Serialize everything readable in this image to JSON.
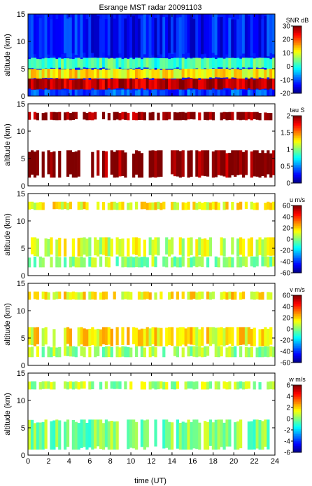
{
  "figure": {
    "title": "Esrange MST radar 20091103",
    "xlabel": "time (UT)",
    "ylabel": "altitude (km)"
  },
  "chart_data": {
    "type": "heatmap",
    "title": "Esrange MST radar 20091103",
    "xlabel": "time (UT)",
    "x_ticks": [
      0,
      2,
      4,
      6,
      8,
      10,
      12,
      14,
      16,
      18,
      20,
      22,
      24
    ],
    "xlim": [
      0,
      24
    ],
    "panels": [
      {
        "id": "snr",
        "ylabel": "altitude (km)",
        "ylim": [
          0,
          15
        ],
        "y_ticks": [
          0,
          5,
          10,
          15
        ],
        "colorbar_label": "SNR dB",
        "clim": [
          -20,
          30
        ],
        "colorbar_ticks": [
          -20,
          -10,
          0,
          10,
          20,
          30
        ],
        "colormap": "jet",
        "description_bands": [
          {
            "alt_from": 0,
            "alt_to": 1.2,
            "value": -10
          },
          {
            "alt_from": 1.2,
            "alt_to": 3.2,
            "value": 27
          },
          {
            "alt_from": 3.2,
            "alt_to": 5.0,
            "value": 12
          },
          {
            "alt_from": 5.0,
            "alt_to": 7.0,
            "value": 2
          },
          {
            "alt_from": 7.0,
            "alt_to": 15,
            "value": -13
          }
        ]
      },
      {
        "id": "tau",
        "ylabel": "altitude (km)",
        "ylim": [
          0,
          15
        ],
        "y_ticks": [
          0,
          5,
          10,
          15
        ],
        "colorbar_label": "tau S",
        "clim": [
          0,
          2
        ],
        "colorbar_ticks": [
          0,
          0.5,
          1,
          1.5,
          2
        ],
        "colormap": "jet",
        "description_bands": [
          {
            "alt_from": 1.5,
            "alt_to": 6.5,
            "value": 2.0
          },
          {
            "alt_from": 12.0,
            "alt_to": 13.5,
            "value": 2.0
          }
        ]
      },
      {
        "id": "u",
        "ylabel": "altitude (km)",
        "ylim": [
          0,
          15
        ],
        "y_ticks": [
          0,
          5,
          10,
          15
        ],
        "colorbar_label": "u m/s",
        "clim": [
          -60,
          60
        ],
        "colorbar_ticks": [
          -60,
          -40,
          -20,
          0,
          20,
          40,
          60
        ],
        "colormap": "jet",
        "description_bands": [
          {
            "alt_from": 1.5,
            "alt_to": 3.5,
            "value": 2
          },
          {
            "alt_from": 3.5,
            "alt_to": 7.0,
            "value": 10
          },
          {
            "alt_from": 12.0,
            "alt_to": 13.5,
            "value": 14
          }
        ]
      },
      {
        "id": "v",
        "ylabel": "altitude (km)",
        "ylim": [
          0,
          15
        ],
        "y_ticks": [
          0,
          5,
          10,
          15
        ],
        "colorbar_label": "v m/s",
        "clim": [
          -60,
          60
        ],
        "colorbar_ticks": [
          -60,
          -40,
          -20,
          0,
          20,
          40,
          60
        ],
        "colormap": "jet",
        "description_bands": [
          {
            "alt_from": 1.5,
            "alt_to": 3.5,
            "value": 4
          },
          {
            "alt_from": 3.5,
            "alt_to": 7.0,
            "value": 16
          },
          {
            "alt_from": 12.0,
            "alt_to": 13.5,
            "value": 16
          }
        ]
      },
      {
        "id": "w",
        "ylabel": "altitude (km)",
        "ylim": [
          0,
          15
        ],
        "y_ticks": [
          0,
          5,
          10,
          15
        ],
        "colorbar_label": "w m/s",
        "clim": [
          -6,
          6
        ],
        "colorbar_ticks": [
          -6,
          -4,
          -2,
          0,
          2,
          4,
          6
        ],
        "colormap": "jet",
        "description_bands": [
          {
            "alt_from": 1.0,
            "alt_to": 6.5,
            "value": 0
          },
          {
            "alt_from": 12.0,
            "alt_to": 13.5,
            "value": 0.5
          }
        ]
      }
    ]
  }
}
